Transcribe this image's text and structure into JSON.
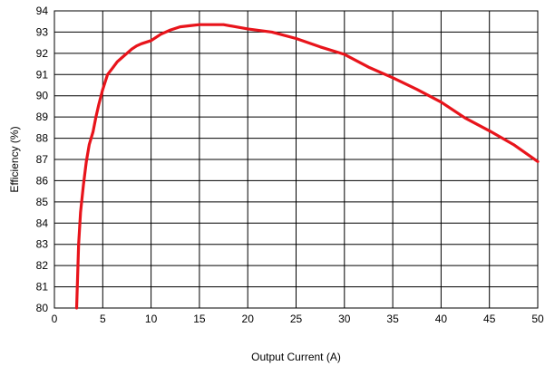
{
  "chart_data": {
    "type": "line",
    "title": "",
    "xlabel": "Output Current (A)",
    "ylabel": "Efficiency (%)",
    "xlim": [
      0,
      50
    ],
    "ylim": [
      80,
      94
    ],
    "x_ticks": [
      0,
      5,
      10,
      15,
      20,
      25,
      30,
      35,
      40,
      45,
      50
    ],
    "y_ticks": [
      80,
      81,
      82,
      83,
      84,
      85,
      86,
      87,
      88,
      89,
      90,
      91,
      92,
      93,
      94
    ],
    "grid": true,
    "legend": "none",
    "series": [
      {
        "color": "#e8141b",
        "x": [
          2.3,
          2.4,
          2.5,
          2.7,
          3.0,
          3.3,
          3.6,
          4.0,
          4.3,
          4.6,
          5.0,
          5.5,
          6.0,
          6.5,
          7.0,
          7.5,
          8.0,
          8.5,
          9.0,
          10.0,
          11.0,
          12.0,
          13.0,
          14.0,
          15.0,
          16.0,
          17.5,
          20.0,
          22.5,
          25.0,
          27.5,
          30.0,
          32.5,
          35.0,
          37.5,
          40.0,
          42.5,
          45.0,
          47.5,
          50.0
        ],
        "values": [
          80.0,
          81.5,
          83.0,
          84.5,
          85.8,
          86.9,
          87.7,
          88.3,
          89.0,
          89.6,
          90.3,
          91.0,
          91.3,
          91.6,
          91.8,
          92.0,
          92.2,
          92.35,
          92.45,
          92.6,
          92.9,
          93.1,
          93.25,
          93.3,
          93.35,
          93.35,
          93.35,
          93.15,
          93.0,
          92.7,
          92.3,
          91.95,
          91.35,
          90.85,
          90.3,
          89.7,
          88.95,
          88.35,
          87.7,
          86.9
        ]
      }
    ]
  }
}
